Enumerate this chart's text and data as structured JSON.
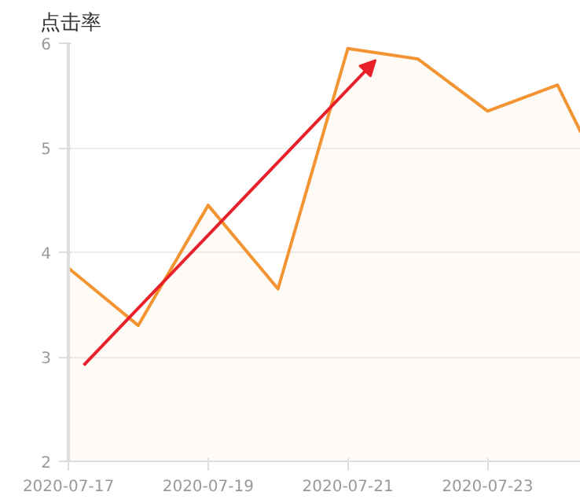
{
  "chart_data": {
    "type": "area",
    "title": "点击率",
    "x": [
      "2020-07-17",
      "2020-07-18",
      "2020-07-19",
      "2020-07-20",
      "2020-07-21",
      "2020-07-22",
      "2020-07-23",
      "2020-07-24",
      "2020-07-24T08:00"
    ],
    "series": [
      {
        "color": "#f39433",
        "values": [
          3.85,
          3.3,
          4.45,
          3.65,
          5.95,
          5.85,
          5.35,
          5.6,
          5.15
        ]
      }
    ],
    "xlim": [
      "2020-07-17",
      "2020-07-24T08:00"
    ],
    "xticks": [
      "2020-07-17",
      "2020-07-19",
      "2020-07-21",
      "2020-07-23"
    ],
    "ylim": [
      2,
      6
    ],
    "yticks": [
      2,
      3,
      4,
      5,
      6
    ],
    "grid": "y"
  }
}
